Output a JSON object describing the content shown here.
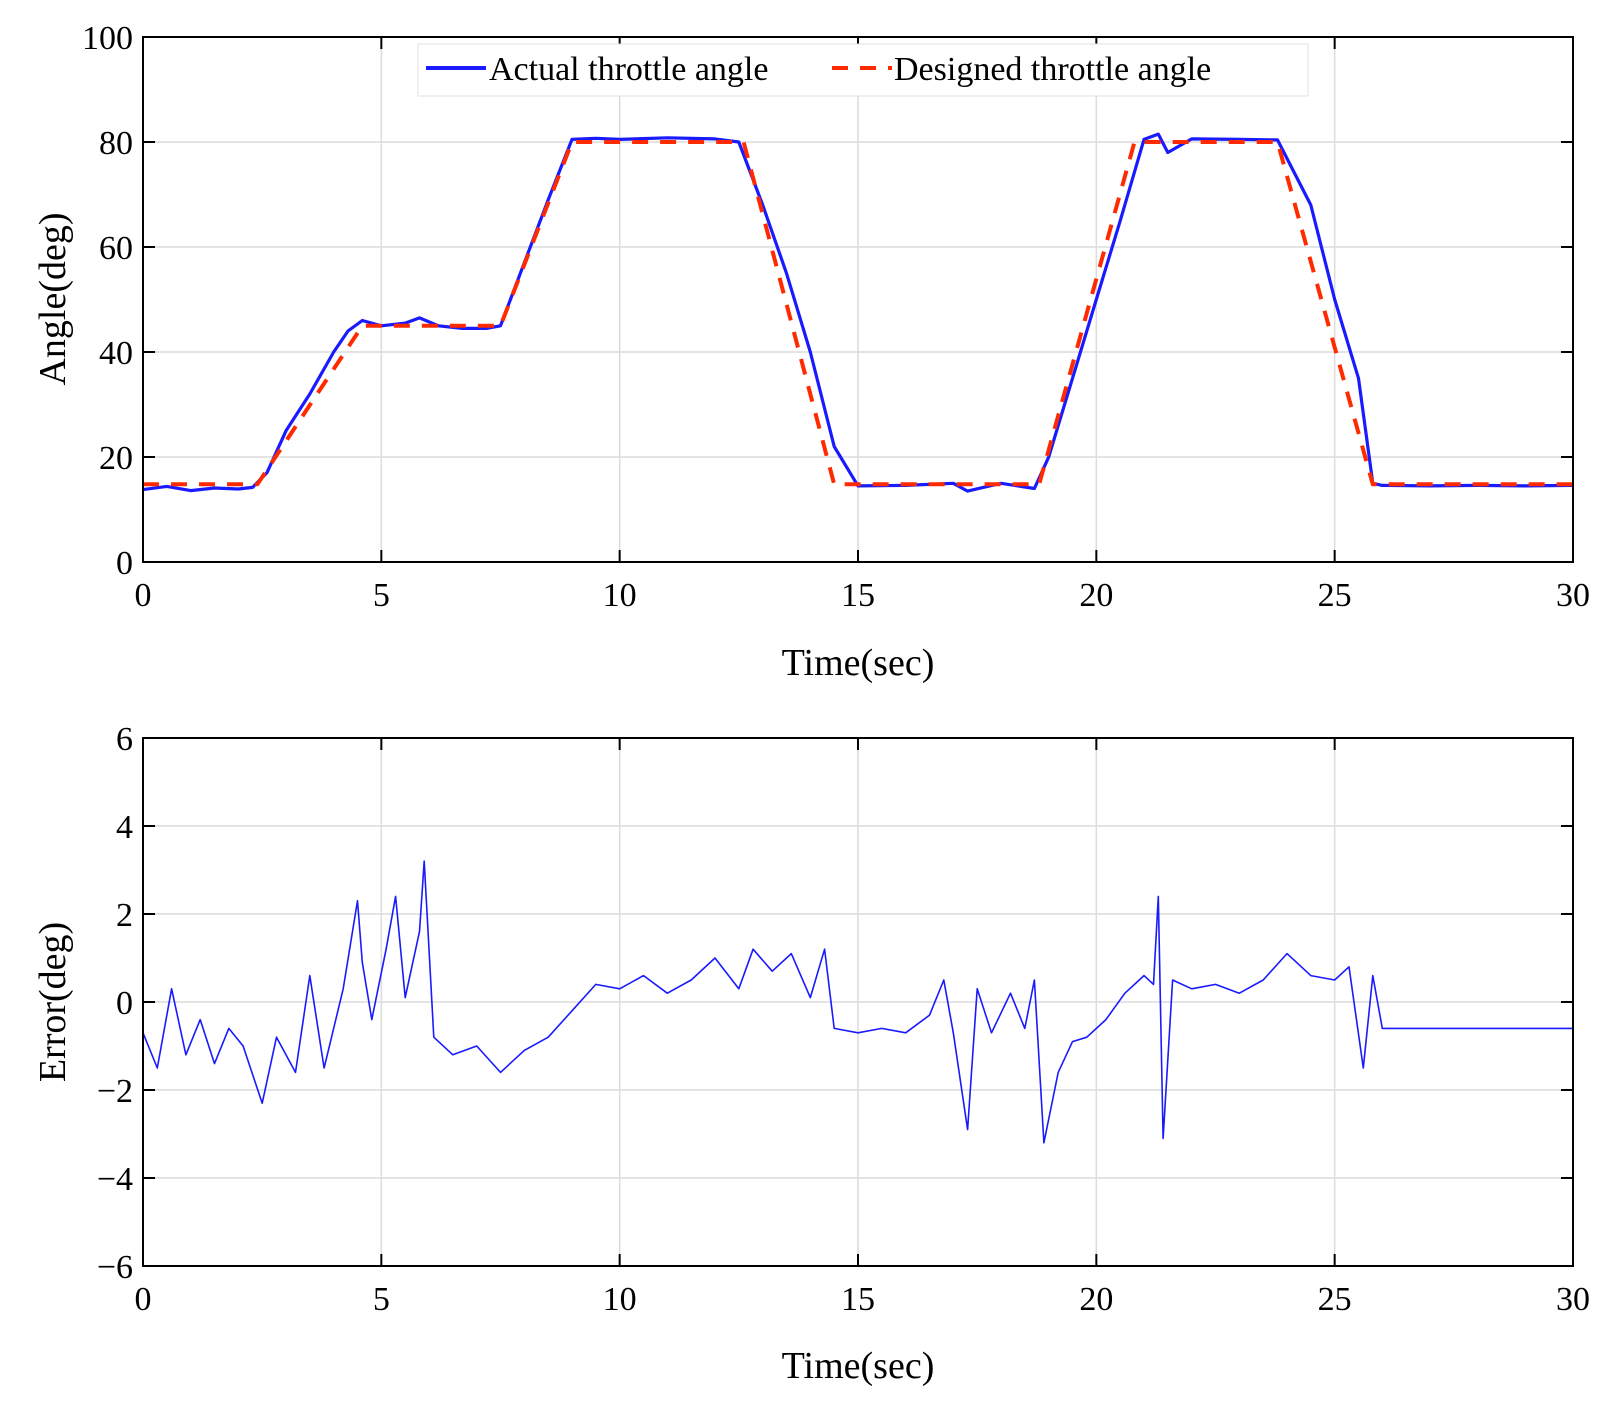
{
  "chart_data": [
    {
      "type": "line",
      "xlabel": "Time(sec)",
      "ylabel": "Angle(deg)",
      "xlim": [
        0,
        30
      ],
      "ylim": [
        0,
        100
      ],
      "xticks": [
        "0",
        "5",
        "10",
        "15",
        "20",
        "25",
        "30"
      ],
      "yticks": [
        "0",
        "20",
        "40",
        "60",
        "80",
        "100"
      ],
      "grid": true,
      "legend_position": "top-center",
      "series": [
        {
          "name": "Actual throttle angle",
          "color": "#1a1aff",
          "style": "solid",
          "x": [
            0,
            0.5,
            1,
            1.5,
            2,
            2.3,
            2.6,
            3,
            3.5,
            4,
            4.3,
            4.6,
            5,
            5.5,
            5.8,
            6.2,
            6.7,
            7.2,
            7.5,
            8,
            8.5,
            9,
            9.5,
            10,
            11,
            12,
            12.5,
            13,
            13.5,
            14,
            14.5,
            15,
            16,
            17,
            17.3,
            18,
            18.7,
            19,
            19.5,
            20,
            20.5,
            21,
            21.3,
            21.5,
            22,
            23,
            23.8,
            24.5,
            25,
            25.5,
            25.8,
            26,
            27,
            28,
            29,
            30
          ],
          "y": [
            13.8,
            14.4,
            13.6,
            14.1,
            13.9,
            14.2,
            17,
            25,
            32,
            40,
            44,
            46,
            45,
            45.5,
            46.5,
            45,
            44.5,
            44.5,
            45,
            57,
            69,
            80.5,
            80.7,
            80.5,
            80.8,
            80.6,
            80,
            68,
            55,
            40,
            22,
            14.5,
            14.6,
            15,
            13.5,
            15,
            14,
            20,
            35,
            50,
            65,
            80.5,
            81.5,
            78,
            80.6,
            80.5,
            80.4,
            68,
            50,
            35,
            15,
            14.6,
            14.5,
            14.6,
            14.5,
            14.6
          ]
        },
        {
          "name": "Designed throttle angle",
          "color": "#ff2a00",
          "style": "dashed",
          "x": [
            0,
            2.4,
            4.6,
            7.5,
            9,
            12.6,
            14.5,
            18.8,
            20.8,
            23.8,
            25.8,
            30
          ],
          "y": [
            14.8,
            14.8,
            45,
            45,
            80,
            80,
            14.8,
            14.8,
            80,
            80,
            14.8,
            14.8
          ]
        }
      ]
    },
    {
      "type": "line",
      "xlabel": "Time(sec)",
      "ylabel": "Error(deg)",
      "xlim": [
        0,
        30
      ],
      "ylim": [
        -6,
        6
      ],
      "xticks": [
        "0",
        "5",
        "10",
        "15",
        "20",
        "25",
        "30"
      ],
      "yticks": [
        "−6",
        "−4",
        "−2",
        "0",
        "2",
        "4",
        "6"
      ],
      "grid": true,
      "series": [
        {
          "color": "#1a1aff",
          "style": "solid",
          "x": [
            0,
            0.3,
            0.6,
            0.9,
            1.2,
            1.5,
            1.8,
            2.1,
            2.5,
            2.8,
            3.2,
            3.5,
            3.8,
            4.2,
            4.5,
            4.6,
            4.8,
            5.1,
            5.3,
            5.5,
            5.8,
            5.9,
            6.1,
            6.5,
            7,
            7.5,
            8,
            8.5,
            9,
            9.5,
            10,
            10.5,
            11,
            11.5,
            12,
            12.5,
            12.8,
            13.2,
            13.6,
            14,
            14.3,
            14.5,
            15,
            15.5,
            16,
            16.5,
            16.8,
            17,
            17.3,
            17.5,
            17.8,
            18.2,
            18.5,
            18.7,
            18.9,
            19.2,
            19.5,
            19.8,
            20.2,
            20.6,
            21,
            21.2,
            21.3,
            21.4,
            21.6,
            22,
            22.5,
            23,
            23.5,
            24,
            24.5,
            25,
            25.3,
            25.6,
            25.8,
            26,
            26.5,
            27,
            28,
            29,
            30
          ],
          "y": [
            -0.7,
            -1.5,
            0.3,
            -1.2,
            -0.4,
            -1.4,
            -0.6,
            -1.0,
            -2.3,
            -0.8,
            -1.6,
            0.6,
            -1.5,
            0.3,
            2.3,
            0.9,
            -0.4,
            1.2,
            2.4,
            0.1,
            1.6,
            3.2,
            -0.8,
            -1.2,
            -1.0,
            -1.6,
            -1.1,
            -0.8,
            -0.2,
            0.4,
            0.3,
            0.6,
            0.2,
            0.5,
            1.0,
            0.3,
            1.2,
            0.7,
            1.1,
            0.1,
            1.2,
            -0.6,
            -0.7,
            -0.6,
            -0.7,
            -0.3,
            0.5,
            -0.7,
            -2.9,
            0.3,
            -0.7,
            0.2,
            -0.6,
            0.5,
            -3.2,
            -1.6,
            -0.9,
            -0.8,
            -0.4,
            0.2,
            0.6,
            0.4,
            2.4,
            -3.1,
            0.5,
            0.3,
            0.4,
            0.2,
            0.5,
            1.1,
            0.6,
            0.5,
            0.8,
            -1.5,
            0.6,
            -0.6,
            -0.6,
            -0.6,
            -0.6,
            -0.6,
            -0.6
          ]
        }
      ]
    }
  ]
}
